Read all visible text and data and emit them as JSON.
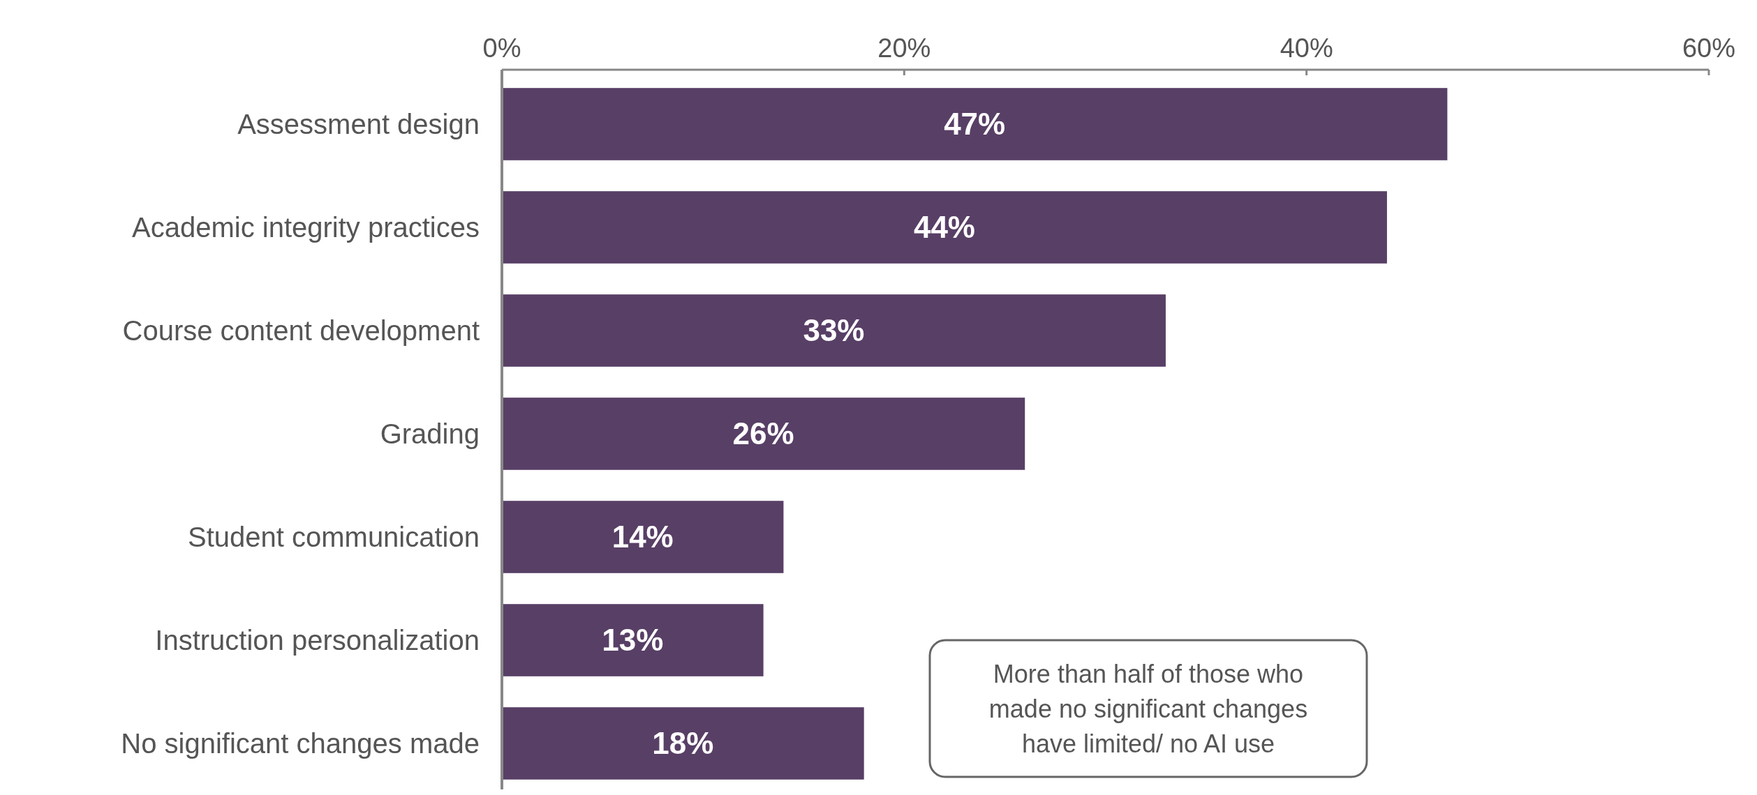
{
  "chart_data": {
    "type": "bar",
    "orientation": "horizontal",
    "categories": [
      "Assessment design",
      "Academic integrity practices",
      "Course content development",
      "Grading",
      "Student communication",
      "Instruction personalization",
      "No significant changes made"
    ],
    "values": [
      47,
      44,
      33,
      26,
      14,
      13,
      18
    ],
    "value_labels": [
      "47%",
      "44%",
      "33%",
      "26%",
      "14%",
      "13%",
      "18%"
    ],
    "color": "#583f66",
    "xlim": [
      0,
      60
    ],
    "xticks": [
      {
        "value": 0,
        "label": "0%"
      },
      {
        "value": 20,
        "label": "20%"
      },
      {
        "value": 40,
        "label": "40%"
      },
      {
        "value": 60,
        "label": "60%"
      }
    ],
    "grid": false,
    "annotations": [
      "More than half of those who made no significant changes have limited/ no AI use"
    ]
  }
}
